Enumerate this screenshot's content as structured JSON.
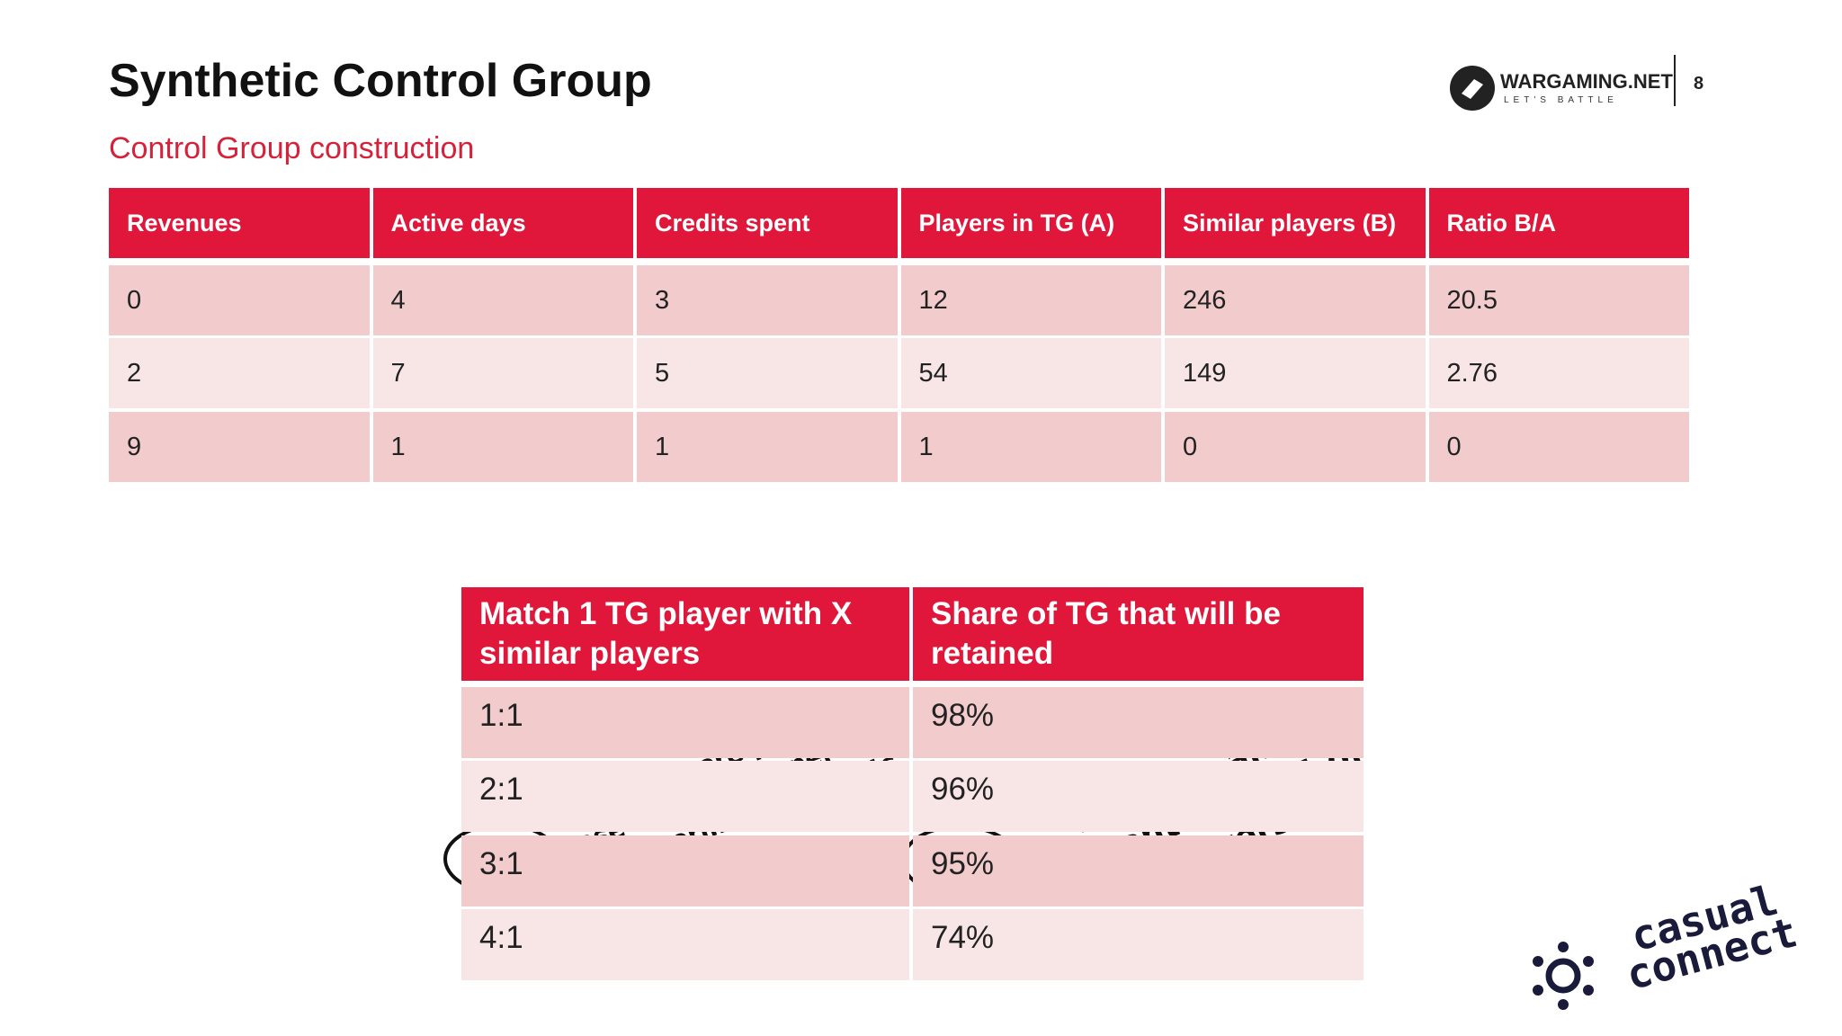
{
  "header": {
    "title": "Synthetic Control Group",
    "subtitle": "Control Group construction",
    "logo": {
      "name": "WARGAMING.NET",
      "tagline": "LET'S BATTLE"
    },
    "page_number": "8"
  },
  "table": {
    "columns": [
      "Revenues",
      "Active days",
      "Credits spent",
      "Players in TG (A)",
      "Similar players (B)",
      "Ratio B/A"
    ],
    "rows": [
      [
        "0",
        "4",
        "3",
        "12",
        "246",
        "20.5"
      ],
      [
        "2",
        "7",
        "5",
        "54",
        "149",
        "2.76"
      ],
      [
        "9",
        "1",
        "1",
        "1",
        "0",
        "0"
      ]
    ]
  },
  "match_table": {
    "columns": [
      "Match 1 TG player with X similar players",
      "Share of TG that will be retained"
    ],
    "rows": [
      [
        "1:1",
        "98%"
      ],
      [
        "2:1",
        "96%"
      ],
      [
        "3:1",
        "95%"
      ],
      [
        "4:1",
        "74%"
      ]
    ]
  },
  "annotations": [
    {
      "lines": [
        "We take more players in",
        "case we want to perform",
        "some permutation tests."
      ]
    },
    {
      "lines": [
        "We keep an",
        "important amount of",
        "TG players"
      ]
    }
  ],
  "footer_logo": {
    "lines": [
      "casual",
      "connect"
    ]
  }
}
